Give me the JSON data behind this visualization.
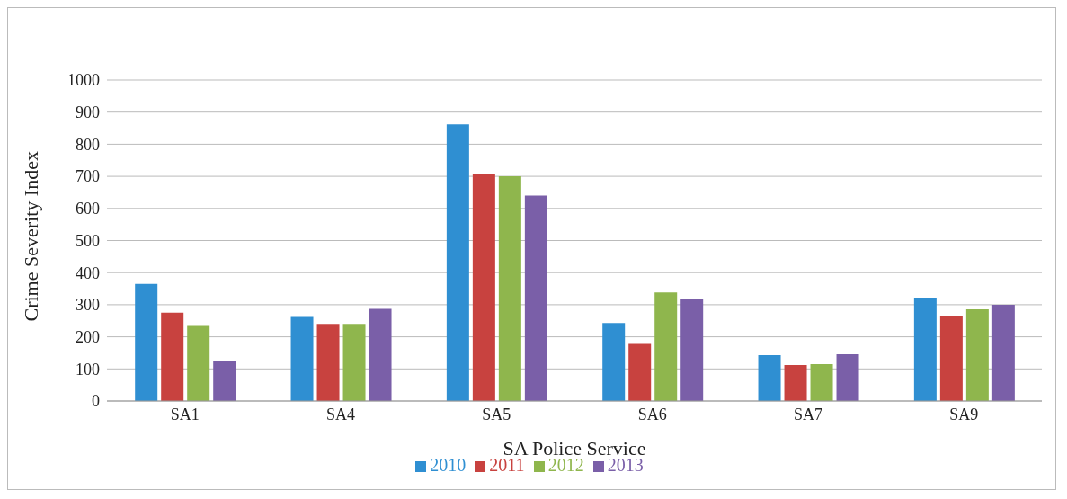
{
  "chart_data": {
    "type": "bar",
    "xlabel": "SA Police Service",
    "ylabel": "Crime Severity Index",
    "categories": [
      "SA1",
      "SA4",
      "SA5",
      "SA6",
      "SA7",
      "SA9"
    ],
    "series": [
      {
        "name": "2010",
        "color": "#2f8fd2",
        "values": [
          365,
          262,
          862,
          243,
          143,
          322
        ]
      },
      {
        "name": "2011",
        "color": "#c8423f",
        "values": [
          275,
          240,
          707,
          178,
          112,
          265
        ]
      },
      {
        "name": "2012",
        "color": "#8fb64d",
        "values": [
          234,
          240,
          700,
          338,
          115,
          286
        ]
      },
      {
        "name": "2013",
        "color": "#7a5fa8",
        "values": [
          125,
          287,
          640,
          318,
          146,
          300
        ]
      }
    ],
    "ylim": [
      0,
      1000
    ],
    "yticks": [
      0,
      100,
      200,
      300,
      400,
      500,
      600,
      700,
      800,
      900,
      1000
    ],
    "grid": "y",
    "legend": "bottom"
  }
}
